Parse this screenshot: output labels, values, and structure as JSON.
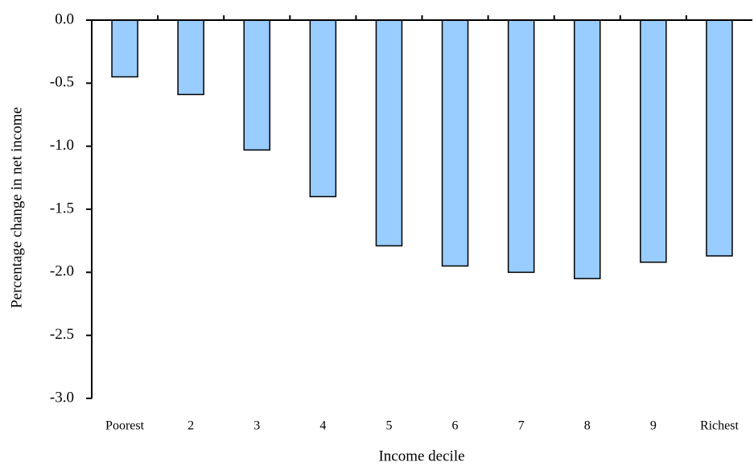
{
  "chart_data": {
    "type": "bar",
    "x_label": "Income decile",
    "y_label": "Percentage change in net income",
    "categories": [
      "Poorest",
      "2",
      "3",
      "4",
      "5",
      "6",
      "7",
      "8",
      "9",
      "Richest"
    ],
    "values": [
      -0.45,
      -0.59,
      -1.03,
      -1.4,
      -1.79,
      -1.95,
      -2.0,
      -2.05,
      -1.92,
      -1.87
    ],
    "color": "#99ccff",
    "ylim": [
      -3,
      0
    ],
    "yticks": [
      {
        "value": 0,
        "label": "0.0"
      },
      -0.5,
      {
        "value": -1,
        "label": "-1.0"
      },
      -1.5,
      {
        "value": -2,
        "label": "-2.0"
      },
      -2.5,
      {
        "value": -3,
        "label": "-3.0"
      }
    ],
    "grid": false
  }
}
